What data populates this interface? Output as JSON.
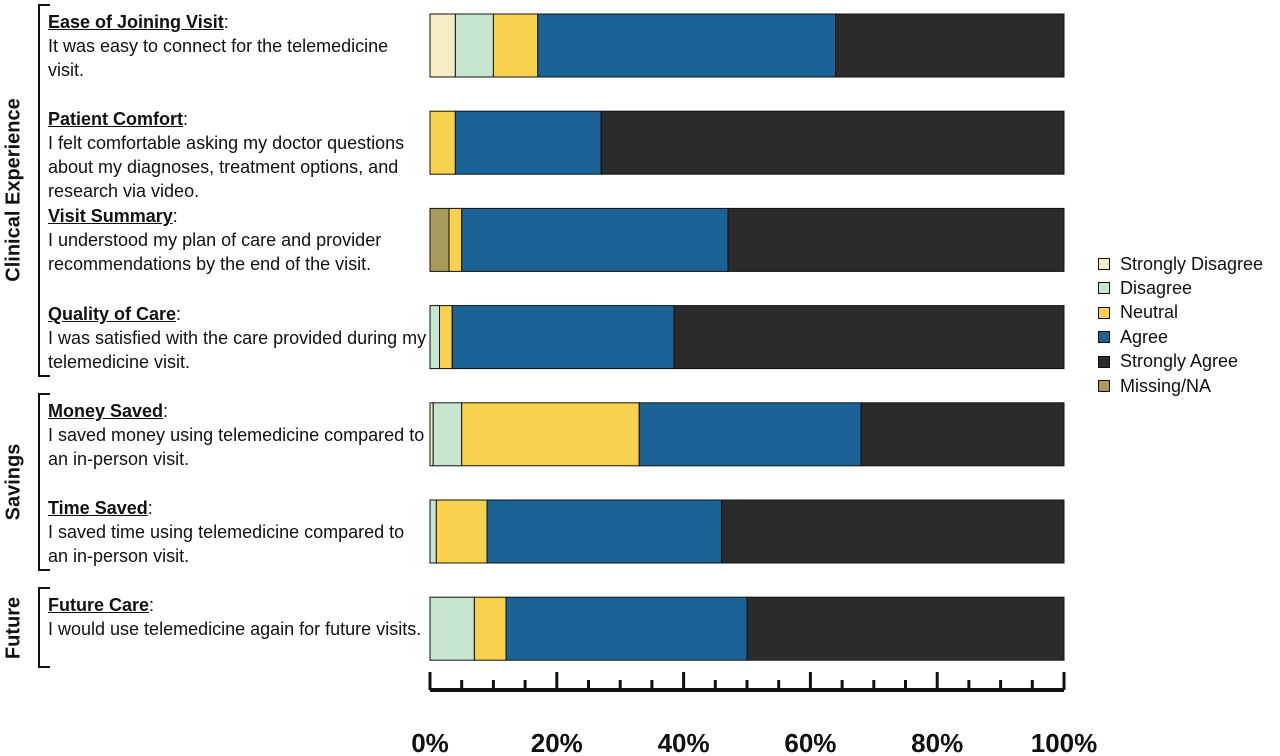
{
  "chart_data": {
    "type": "bar",
    "orientation": "horizontal",
    "stacked": true,
    "categories": [
      {
        "heading": "Ease of Joining Visit",
        "text": "It was easy to connect for the telemedicine visit."
      },
      {
        "heading": "Patient Comfort",
        "text": "I felt comfortable asking my doctor questions about my diagnoses, treatment options, and research via video."
      },
      {
        "heading": "Visit Summary",
        "text": "I understood my plan of care and provider recommendations by the end of the visit."
      },
      {
        "heading": "Quality of Care",
        "text": "I was satisfied with the care provided during my telemedicine visit."
      },
      {
        "heading": "Money Saved",
        "text": "I saved money using telemedicine compared to an in-person visit."
      },
      {
        "heading": "Time Saved",
        "text": "I saved time using telemedicine compared to an in-person visit."
      },
      {
        "heading": "Future Care",
        "text": "I would use telemedicine again for future visits."
      }
    ],
    "groups": [
      {
        "name": "Clinical Experience",
        "rows": [
          0,
          1,
          2,
          3
        ]
      },
      {
        "name": "Savings",
        "rows": [
          4,
          5
        ]
      },
      {
        "name": "Future",
        "rows": [
          6
        ]
      }
    ],
    "series": [
      {
        "name": "Missing/NA",
        "color": "#a89a58",
        "values": [
          0,
          0,
          3,
          0,
          0,
          0,
          0
        ]
      },
      {
        "name": "Strongly Disagree",
        "color": "#f7edc4",
        "values": [
          4,
          0,
          0,
          0,
          0.5,
          0,
          0
        ]
      },
      {
        "name": "Disagree",
        "color": "#c7e6cf",
        "values": [
          6,
          0,
          0,
          1.5,
          4.5,
          1,
          7
        ]
      },
      {
        "name": "Neutral",
        "color": "#f8d24f",
        "values": [
          7,
          4,
          2,
          2,
          28,
          8,
          5
        ]
      },
      {
        "name": "Agree",
        "color": "#1b6397",
        "values": [
          47,
          23,
          42,
          35,
          35,
          37,
          38
        ]
      },
      {
        "name": "Strongly Agree",
        "color": "#2b2b2b",
        "values": [
          36,
          73,
          53,
          61.5,
          32,
          54,
          50
        ]
      }
    ],
    "legend_order": [
      "Strongly Disagree",
      "Disagree",
      "Neutral",
      "Agree",
      "Strongly Agree",
      "Missing/NA"
    ],
    "xlim": [
      0,
      100
    ],
    "x_ticks": [
      "0%",
      "20%",
      "40%",
      "60%",
      "80%",
      "100%"
    ],
    "legend_position": "right",
    "grid": false
  }
}
